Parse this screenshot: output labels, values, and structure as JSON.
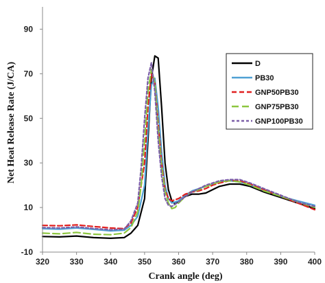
{
  "chart_data": {
    "type": "line",
    "title": "",
    "xlabel": "Crank angle (deg)",
    "ylabel": "Net Heat Release Rate (J/CA)",
    "xlim": [
      320,
      400
    ],
    "ylim": [
      -10,
      100
    ],
    "x_ticks": [
      "320",
      "330",
      "340",
      "350",
      "360",
      "370",
      "380",
      "390",
      "400"
    ],
    "y_ticks": [
      "-10",
      "10",
      "30",
      "50",
      "70",
      "90"
    ],
    "grid": false,
    "legend_position": "right",
    "series": [
      {
        "name": "D",
        "color": "#000000",
        "dash": "solid",
        "width": 2.2,
        "points": [
          [
            320,
            -3
          ],
          [
            325,
            -3.2
          ],
          [
            330,
            -2.8
          ],
          [
            335,
            -3.5
          ],
          [
            340,
            -3.8
          ],
          [
            344,
            -3.5
          ],
          [
            346,
            -1.5
          ],
          [
            348,
            2
          ],
          [
            350,
            14
          ],
          [
            351,
            40
          ],
          [
            352,
            68
          ],
          [
            353,
            78
          ],
          [
            354,
            77
          ],
          [
            355,
            55
          ],
          [
            356,
            30
          ],
          [
            357,
            18
          ],
          [
            358,
            13
          ],
          [
            359,
            11.5
          ],
          [
            360,
            13
          ],
          [
            362,
            15
          ],
          [
            364,
            16
          ],
          [
            366,
            16
          ],
          [
            368,
            16.5
          ],
          [
            370,
            18
          ],
          [
            372,
            19.5
          ],
          [
            375,
            20.5
          ],
          [
            378,
            20.5
          ],
          [
            381,
            19.5
          ],
          [
            385,
            17
          ],
          [
            390,
            14.5
          ],
          [
            395,
            12
          ],
          [
            400,
            9.5
          ]
        ]
      },
      {
        "name": "PB30",
        "color": "#4ea0d4",
        "dash": "solid",
        "width": 2.2,
        "points": [
          [
            320,
            0.5
          ],
          [
            325,
            0.3
          ],
          [
            330,
            0.8
          ],
          [
            335,
            0.2
          ],
          [
            340,
            -0.5
          ],
          [
            344,
            -0.2
          ],
          [
            346,
            2
          ],
          [
            348,
            6
          ],
          [
            350,
            20
          ],
          [
            351,
            45
          ],
          [
            352,
            65
          ],
          [
            353,
            68
          ],
          [
            354,
            55
          ],
          [
            355,
            35
          ],
          [
            356,
            20
          ],
          [
            357,
            14
          ],
          [
            358,
            12
          ],
          [
            360,
            13
          ],
          [
            362,
            15.5
          ],
          [
            364,
            17.5
          ],
          [
            366,
            18.5
          ],
          [
            368,
            19.5
          ],
          [
            370,
            20.5
          ],
          [
            372,
            21.5
          ],
          [
            375,
            22
          ],
          [
            378,
            21.5
          ],
          [
            381,
            20
          ],
          [
            385,
            18
          ],
          [
            390,
            15
          ],
          [
            395,
            13
          ],
          [
            400,
            11
          ]
        ]
      },
      {
        "name": "GNP50PB30",
        "color": "#e02020",
        "dash": "7,4",
        "width": 2.2,
        "points": [
          [
            320,
            2
          ],
          [
            325,
            1.8
          ],
          [
            330,
            2.2
          ],
          [
            335,
            1.5
          ],
          [
            340,
            0.8
          ],
          [
            344,
            0.5
          ],
          [
            346,
            3
          ],
          [
            348,
            10
          ],
          [
            350,
            30
          ],
          [
            351,
            55
          ],
          [
            352,
            70
          ],
          [
            353,
            66
          ],
          [
            354,
            48
          ],
          [
            355,
            30
          ],
          [
            356,
            18
          ],
          [
            357,
            14
          ],
          [
            358,
            13
          ],
          [
            360,
            14
          ],
          [
            362,
            16
          ],
          [
            364,
            17
          ],
          [
            366,
            17.5
          ],
          [
            368,
            18.5
          ],
          [
            370,
            20
          ],
          [
            372,
            21
          ],
          [
            375,
            22
          ],
          [
            378,
            22
          ],
          [
            381,
            20.5
          ],
          [
            385,
            18
          ],
          [
            390,
            15
          ],
          [
            395,
            12
          ],
          [
            400,
            9
          ]
        ]
      },
      {
        "name": "GNP75PB30",
        "color": "#8cc63f",
        "dash": "10,5",
        "width": 2.2,
        "points": [
          [
            320,
            -1.5
          ],
          [
            325,
            -1.8
          ],
          [
            330,
            -1.2
          ],
          [
            335,
            -2
          ],
          [
            340,
            -2.2
          ],
          [
            344,
            -1.5
          ],
          [
            346,
            1
          ],
          [
            348,
            8
          ],
          [
            349,
            20
          ],
          [
            350,
            40
          ],
          [
            351,
            62
          ],
          [
            352,
            72
          ],
          [
            353,
            66
          ],
          [
            354,
            45
          ],
          [
            355,
            28
          ],
          [
            356,
            17
          ],
          [
            357,
            12
          ],
          [
            358,
            9.5
          ],
          [
            359,
            10
          ],
          [
            360,
            12
          ],
          [
            362,
            15
          ],
          [
            364,
            17
          ],
          [
            366,
            18
          ],
          [
            368,
            19.5
          ],
          [
            370,
            20.5
          ],
          [
            372,
            21.5
          ],
          [
            375,
            22
          ],
          [
            378,
            21.5
          ],
          [
            381,
            20
          ],
          [
            385,
            17.5
          ],
          [
            390,
            15
          ],
          [
            395,
            12.5
          ],
          [
            400,
            10
          ]
        ]
      },
      {
        "name": "GNP100PB30",
        "color": "#7b5ea7",
        "dash": "4,3",
        "width": 2.2,
        "points": [
          [
            320,
            1
          ],
          [
            325,
            0.8
          ],
          [
            330,
            1.3
          ],
          [
            335,
            0.6
          ],
          [
            340,
            0
          ],
          [
            344,
            0.3
          ],
          [
            346,
            4
          ],
          [
            348,
            12
          ],
          [
            349,
            28
          ],
          [
            350,
            50
          ],
          [
            351,
            68
          ],
          [
            352,
            75
          ],
          [
            353,
            62
          ],
          [
            354,
            40
          ],
          [
            355,
            24
          ],
          [
            356,
            14
          ],
          [
            357,
            11
          ],
          [
            358,
            10.5
          ],
          [
            360,
            12.5
          ],
          [
            362,
            15
          ],
          [
            364,
            17
          ],
          [
            366,
            18.5
          ],
          [
            368,
            20
          ],
          [
            370,
            21
          ],
          [
            372,
            22
          ],
          [
            375,
            22.5
          ],
          [
            378,
            22.5
          ],
          [
            381,
            21
          ],
          [
            385,
            18.5
          ],
          [
            390,
            15.5
          ],
          [
            395,
            12.5
          ],
          [
            400,
            10.5
          ]
        ]
      }
    ]
  }
}
